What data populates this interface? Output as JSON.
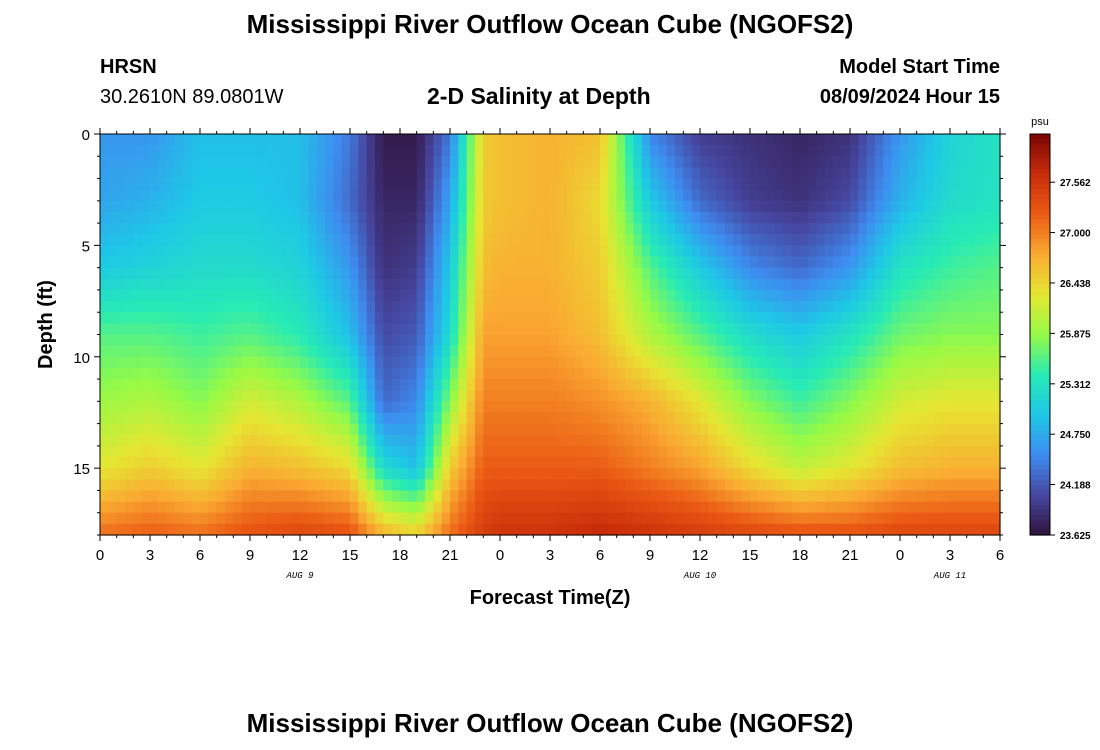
{
  "header": {
    "title": "Mississippi River Outflow Ocean Cube (NGOFS2)",
    "station": "HRSN",
    "coords": "30.2610N  89.0801W",
    "subtitle": "2-D Salinity at Depth",
    "start_label": "Model Start Time",
    "start_value": "08/09/2024 Hour 15"
  },
  "footer": {
    "title": "Mississippi River Outflow Ocean Cube (NGOFS2)"
  },
  "chart_data": {
    "type": "heatmap",
    "title": "2-D Salinity at Depth",
    "xlabel": "Forecast Time(Z)",
    "ylabel": "Depth (ft)",
    "x_ticks": [
      "0",
      "3",
      "6",
      "9",
      "12",
      "15",
      "18",
      "21",
      "0",
      "3",
      "6",
      "9",
      "12",
      "15",
      "18",
      "21",
      "0",
      "3",
      "6"
    ],
    "x_range_hours": [
      0,
      54
    ],
    "date_labels": [
      {
        "text": "AUG 9",
        "hour": 12
      },
      {
        "text": "AUG 10",
        "hour": 36
      },
      {
        "text": "AUG 11",
        "hour": 51
      }
    ],
    "y_ticks": [
      0,
      5,
      10,
      15
    ],
    "ylim": [
      0,
      18
    ],
    "y_inverted": true,
    "colorbar": {
      "unit": "psu",
      "min": 23.625,
      "max": 28.1,
      "tick_values": [
        27.562,
        27.0,
        26.438,
        25.875,
        25.312,
        24.75,
        24.188,
        23.625
      ],
      "tick_labels": [
        "27.562",
        "27.000",
        "26.438",
        "25.875",
        "25.312",
        "24.750",
        "24.188",
        "23.625"
      ]
    },
    "time_hours": [
      0,
      3,
      6,
      9,
      12,
      15,
      17,
      19,
      21,
      23,
      24,
      27,
      30,
      33,
      36,
      39,
      42,
      45,
      48,
      51,
      54
    ],
    "depth_ft": [
      0,
      3,
      6,
      9,
      12,
      15,
      18
    ],
    "salinity_psu": [
      [
        24.6,
        24.6,
        24.9,
        24.9,
        24.9,
        24.4,
        23.7,
        23.7,
        24.4,
        26.5,
        26.6,
        26.7,
        26.6,
        24.5,
        24.0,
        23.9,
        23.8,
        23.9,
        24.6,
        25.1,
        25.3
      ],
      [
        24.7,
        24.8,
        25.0,
        25.0,
        24.9,
        24.3,
        23.8,
        23.8,
        24.7,
        26.5,
        26.6,
        26.7,
        26.4,
        25.0,
        24.3,
        24.0,
        23.9,
        24.1,
        24.8,
        25.2,
        25.3
      ],
      [
        25.0,
        25.1,
        25.2,
        25.2,
        25.1,
        24.6,
        23.9,
        24.0,
        25.0,
        26.6,
        26.7,
        26.7,
        26.5,
        25.6,
        25.0,
        24.5,
        24.3,
        24.6,
        25.3,
        25.5,
        25.6
      ],
      [
        25.6,
        25.6,
        25.5,
        25.6,
        25.4,
        24.9,
        24.1,
        24.2,
        25.2,
        26.8,
        26.8,
        26.8,
        26.6,
        26.0,
        25.6,
        25.2,
        25.0,
        25.3,
        25.7,
        25.8,
        25.8
      ],
      [
        25.9,
        26.0,
        25.8,
        26.2,
        26.0,
        25.6,
        24.3,
        24.5,
        25.8,
        27.0,
        27.0,
        27.0,
        26.9,
        26.7,
        26.3,
        25.8,
        25.5,
        25.8,
        26.2,
        26.3,
        26.3
      ],
      [
        26.3,
        26.5,
        26.3,
        26.7,
        26.6,
        26.4,
        25.2,
        24.9,
        26.5,
        27.2,
        27.2,
        27.2,
        27.2,
        27.0,
        26.8,
        26.4,
        26.1,
        26.3,
        26.6,
        26.7,
        26.7
      ],
      [
        27.1,
        27.2,
        27.1,
        27.3,
        27.4,
        27.3,
        26.7,
        26.5,
        27.1,
        27.5,
        27.6,
        27.6,
        27.7,
        27.6,
        27.5,
        27.4,
        27.3,
        27.3,
        27.4,
        27.4,
        27.4
      ]
    ]
  }
}
